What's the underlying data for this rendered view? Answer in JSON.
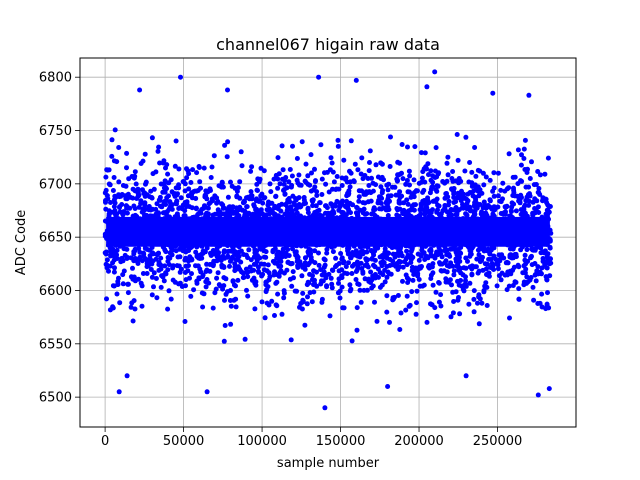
{
  "chart_data": {
    "type": "scatter",
    "title": "channel067 higain raw data",
    "xlabel": "sample number",
    "ylabel": "ADC Code",
    "xlim": [
      -16000,
      300000
    ],
    "ylim": [
      6472,
      6818
    ],
    "x_ticks": [
      0,
      50000,
      100000,
      150000,
      200000,
      250000
    ],
    "x_tick_labels": [
      "0",
      "50000",
      "100000",
      "150000",
      "200000",
      "250000"
    ],
    "y_ticks": [
      6500,
      6550,
      6600,
      6650,
      6700,
      6750,
      6800
    ],
    "y_tick_labels": [
      "6500",
      "6550",
      "6600",
      "6650",
      "6700",
      "6750",
      "6800"
    ],
    "grid": true,
    "marker_color": "#0000ff",
    "series": [
      {
        "x_range": [
          0,
          284000
        ],
        "y_center": 6655,
        "dense_band": [
          6605,
          6705
        ],
        "spread_band": [
          6530,
          6780
        ],
        "notable_points": [
          {
            "x": 48000,
            "y": 6800
          },
          {
            "x": 136000,
            "y": 6800
          },
          {
            "x": 160000,
            "y": 6797
          },
          {
            "x": 210000,
            "y": 6805
          },
          {
            "x": 205000,
            "y": 6791
          },
          {
            "x": 140000,
            "y": 6490
          },
          {
            "x": 9000,
            "y": 6505
          },
          {
            "x": 65000,
            "y": 6505
          },
          {
            "x": 276000,
            "y": 6502
          },
          {
            "x": 283000,
            "y": 6508
          },
          {
            "x": 180000,
            "y": 6510
          },
          {
            "x": 14000,
            "y": 6520
          },
          {
            "x": 230000,
            "y": 6520
          },
          {
            "x": 22000,
            "y": 6788
          },
          {
            "x": 78000,
            "y": 6788
          },
          {
            "x": 247000,
            "y": 6785
          },
          {
            "x": 270000,
            "y": 6783
          }
        ]
      }
    ]
  }
}
